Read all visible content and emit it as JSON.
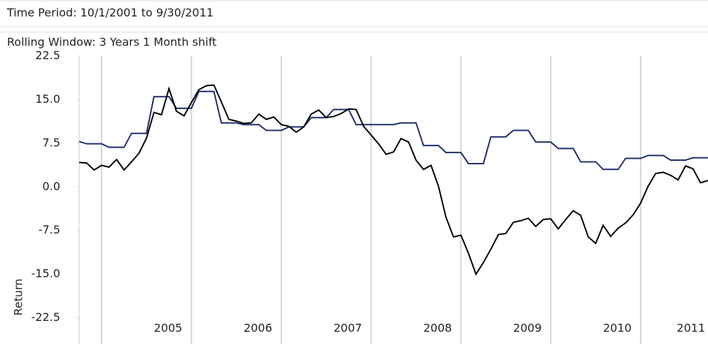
{
  "header": {
    "time_period": "Time Period: 10/1/2001 to 9/30/2011",
    "rolling_window": "Rolling Window: 3 Years 1 Month shift"
  },
  "chart_data": {
    "type": "line",
    "y_label": "Return",
    "x": [
      2004.75,
      2004.833,
      2004.917,
      2005,
      2005.083,
      2005.167,
      2005.25,
      2005.333,
      2005.417,
      2005.5,
      2005.583,
      2005.667,
      2005.75,
      2005.833,
      2005.917,
      2006,
      2006.083,
      2006.167,
      2006.25,
      2006.333,
      2006.417,
      2006.5,
      2006.583,
      2006.667,
      2006.75,
      2006.833,
      2006.917,
      2007,
      2007.083,
      2007.167,
      2007.25,
      2007.333,
      2007.417,
      2007.5,
      2007.583,
      2007.667,
      2007.75,
      2007.833,
      2007.917,
      2008,
      2008.083,
      2008.167,
      2008.25,
      2008.333,
      2008.417,
      2008.5,
      2008.583,
      2008.667,
      2008.75,
      2008.833,
      2008.917,
      2009,
      2009.083,
      2009.167,
      2009.25,
      2009.333,
      2009.417,
      2009.5,
      2009.583,
      2009.667,
      2009.75,
      2009.833,
      2009.917,
      2010,
      2010.083,
      2010.167,
      2010.25,
      2010.333,
      2010.417,
      2010.5,
      2010.583,
      2010.667,
      2010.75,
      2010.833,
      2010.917,
      2011,
      2011.083,
      2011.167,
      2011.25,
      2011.333,
      2011.417,
      2011.5,
      2011.583,
      2011.667,
      2011.75
    ],
    "series": [
      {
        "color": "#1f2d6b",
        "values": [
          7.8,
          7.4,
          7.4,
          7.4,
          6.8,
          6.8,
          6.8,
          9.2,
          9.2,
          9.2,
          15.5,
          15.5,
          15.5,
          13.5,
          13.5,
          13.5,
          16.4,
          16.4,
          16.4,
          11.0,
          11.0,
          11.0,
          10.7,
          10.7,
          10.7,
          9.7,
          9.7,
          9.7,
          10.3,
          10.3,
          10.3,
          11.9,
          11.9,
          11.9,
          13.3,
          13.3,
          13.3,
          10.7,
          10.7,
          10.7,
          10.7,
          10.7,
          10.7,
          11.0,
          11.0,
          11.0,
          7.1,
          7.1,
          7.1,
          5.9,
          5.9,
          5.9,
          4.0,
          4.0,
          4.0,
          8.6,
          8.6,
          8.6,
          9.7,
          9.7,
          9.7,
          7.7,
          7.7,
          7.7,
          6.6,
          6.6,
          6.6,
          4.3,
          4.3,
          4.3,
          3.0,
          3.0,
          3.0,
          4.9,
          4.9,
          4.9,
          5.4,
          5.4,
          5.4,
          4.6,
          4.6,
          4.6,
          5.0,
          5.0,
          5.0
        ]
      },
      {
        "color": "#000000",
        "values": [
          4.2,
          4.1,
          2.9,
          3.7,
          3.4,
          4.7,
          2.9,
          4.3,
          5.8,
          8.4,
          12.8,
          12.4,
          16.9,
          13.0,
          12.2,
          14.5,
          16.7,
          17.4,
          17.5,
          14.6,
          11.6,
          11.3,
          10.9,
          11.0,
          12.5,
          11.6,
          12.0,
          10.7,
          10.4,
          9.4,
          10.3,
          12.5,
          13.2,
          11.9,
          12.1,
          12.6,
          13.4,
          13.3,
          10.4,
          8.9,
          7.4,
          5.6,
          6.0,
          8.3,
          7.7,
          4.6,
          3.0,
          3.7,
          0.1,
          -5.2,
          -8.6,
          -8.3,
          -11.4,
          -15.0,
          -13.0,
          -10.7,
          -8.2,
          -8.0,
          -6.1,
          -5.8,
          -5.4,
          -6.8,
          -5.6,
          -5.5,
          -7.2,
          -5.6,
          -4.1,
          -4.9,
          -8.6,
          -9.7,
          -6.6,
          -8.5,
          -7.1,
          -6.2,
          -4.8,
          -2.8,
          0.1,
          2.3,
          2.5,
          2.0,
          1.2,
          3.6,
          3.1,
          0.7,
          1.1
        ]
      }
    ],
    "xlim": [
      2004.75,
      2011.75
    ],
    "xticks": [
      2005,
      2006,
      2007,
      2008,
      2009,
      2010,
      2011
    ],
    "ylim": [
      -27,
      22.5
    ],
    "yticks": [
      22.5,
      {
        "value": 15,
        "label": "15.0"
      },
      7.5,
      {
        "value": 0,
        "label": "0.0"
      },
      -7.5,
      {
        "value": -15,
        "label": "-15.0"
      },
      -22.5
    ],
    "grid": true
  }
}
